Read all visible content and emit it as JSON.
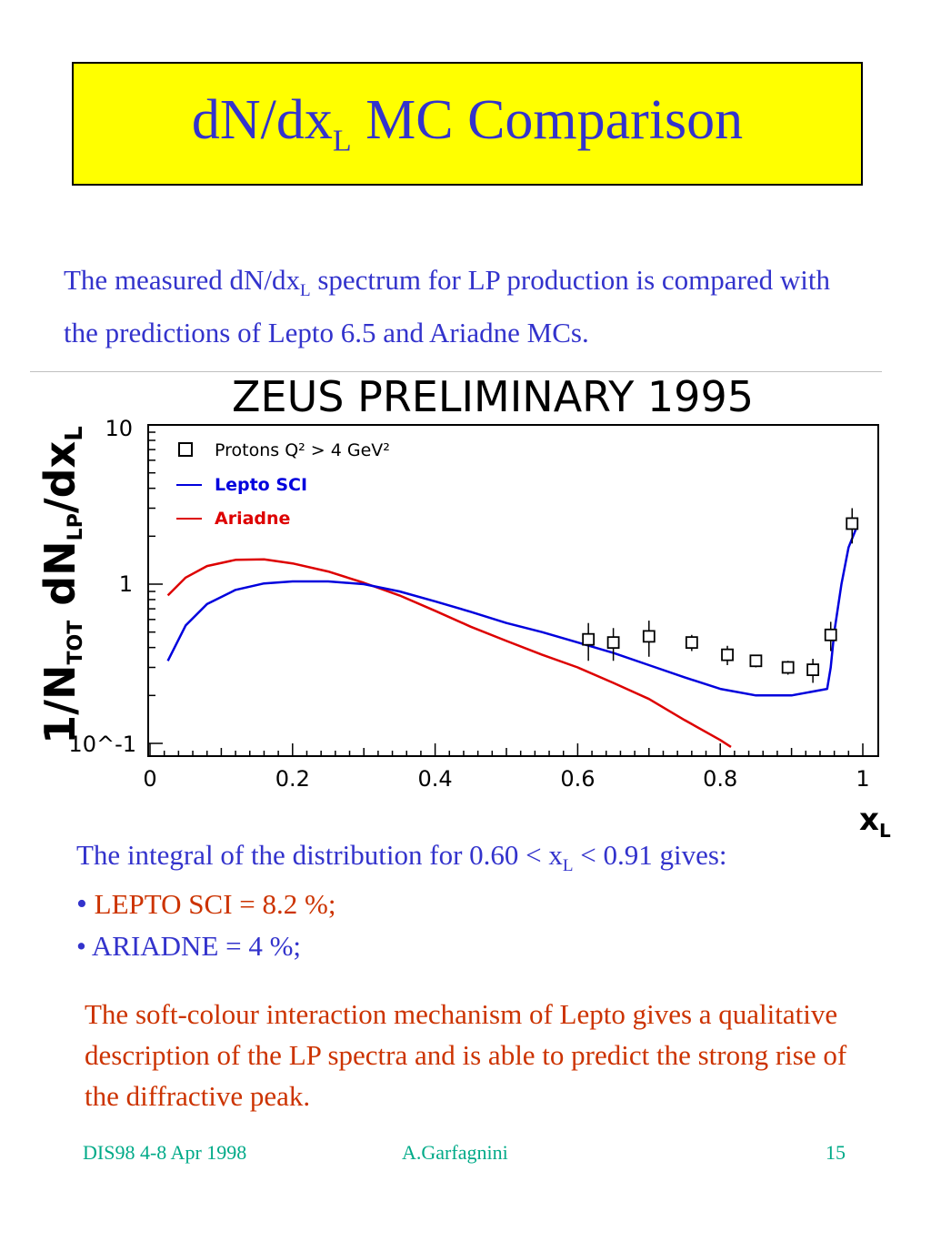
{
  "title": {
    "main": "dN/dx",
    "sub": "L",
    "rest": " MC Comparison"
  },
  "intro": {
    "p1": "The measured dN/dx",
    "sub": "L",
    "p2": " spectrum for LP production is compared with the predictions of Lepto 6.5 and Ariadne MCs."
  },
  "chart_data": {
    "type": "line",
    "title": "ZEUS PRELIMINARY 1995",
    "xlabel": "x_L",
    "ylabel": "1/N_TOT dN_LP/dx_L",
    "xlim": [
      0,
      1
    ],
    "ylim": [
      0.1,
      10
    ],
    "yscale": "log",
    "x_ticks": [
      "0",
      "0.2",
      "0.4",
      "0.6",
      "0.8",
      "1"
    ],
    "y_ticks": [
      "10^-1",
      "1",
      "10"
    ],
    "legend_position": "top-left",
    "colors": {
      "protons": "#000000",
      "lepto": "#0000dd",
      "ariadne": "#dd0000"
    },
    "series": [
      {
        "name": "Protons Q² > 4 GeV²",
        "kind": "points",
        "x": [
          0.615,
          0.65,
          0.7,
          0.76,
          0.81,
          0.85,
          0.895,
          0.93,
          0.955,
          0.985
        ],
        "y": [
          0.45,
          0.43,
          0.47,
          0.43,
          0.36,
          0.33,
          0.3,
          0.29,
          0.48,
          2.4
        ],
        "err": [
          0.12,
          0.1,
          0.12,
          0.05,
          0.05,
          0.03,
          0.03,
          0.05,
          0.1,
          0.6
        ]
      },
      {
        "name": "Lepto SCI",
        "kind": "line",
        "x": [
          0.025,
          0.05,
          0.08,
          0.12,
          0.16,
          0.2,
          0.25,
          0.3,
          0.35,
          0.4,
          0.45,
          0.5,
          0.55,
          0.6,
          0.65,
          0.7,
          0.75,
          0.8,
          0.85,
          0.9,
          0.95,
          0.955,
          0.96,
          0.97,
          0.98,
          0.99
        ],
        "y": [
          0.33,
          0.55,
          0.75,
          0.92,
          1.01,
          1.04,
          1.04,
          1.0,
          0.9,
          0.78,
          0.67,
          0.57,
          0.5,
          0.43,
          0.37,
          0.31,
          0.26,
          0.22,
          0.2,
          0.2,
          0.22,
          0.3,
          0.5,
          1.0,
          1.7,
          2.2
        ]
      },
      {
        "name": "Ariadne",
        "kind": "line",
        "x": [
          0.025,
          0.05,
          0.08,
          0.12,
          0.16,
          0.2,
          0.25,
          0.3,
          0.35,
          0.4,
          0.45,
          0.5,
          0.55,
          0.6,
          0.65,
          0.7,
          0.75,
          0.8,
          0.815
        ],
        "y": [
          0.85,
          1.1,
          1.3,
          1.42,
          1.43,
          1.35,
          1.2,
          1.02,
          0.85,
          0.68,
          0.54,
          0.44,
          0.36,
          0.3,
          0.24,
          0.19,
          0.14,
          0.105,
          0.095
        ]
      }
    ]
  },
  "integral": {
    "p1": "The integral of the distribution for 0.60 < x",
    "sub": "L",
    "p2": " < 0.91 gives:"
  },
  "bullets": {
    "lepto": "LEPTO SCI = 8.2 %;",
    "ariadne": "• ARIADNE  = 4 %;"
  },
  "conclusion": "The soft-colour interaction mechanism of Lepto gives a qualitative description of the LP spectra and is able to predict the strong rise of the diffractive peak.",
  "footer": {
    "conference": "DIS98 4-8 Apr 1998",
    "author": "A.Garfagnini",
    "page": "15"
  }
}
